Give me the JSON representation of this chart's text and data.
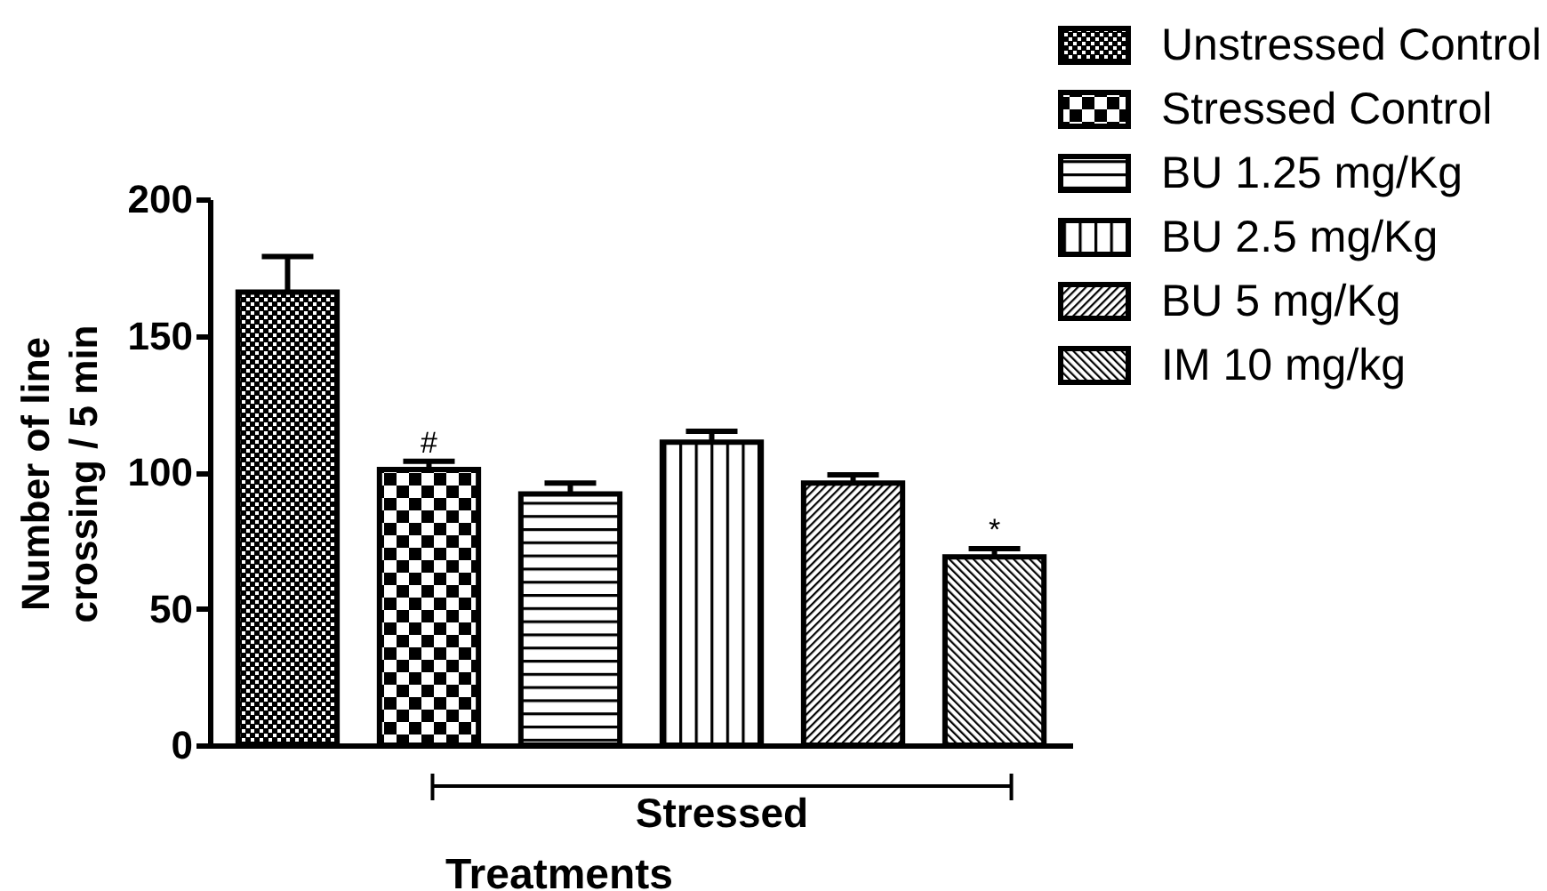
{
  "chart_data": {
    "type": "bar",
    "xlabel": "Treatments",
    "ylabel": "Number of line crossing / 5 min",
    "categories": [
      null
    ],
    "series": [
      {
        "name": "Unstressed Control",
        "color": "#000000",
        "values": [
          166
        ],
        "errors": [
          13
        ]
      },
      {
        "name": "Stressed Control",
        "color": "#000000",
        "values": [
          101
        ],
        "errors": [
          3
        ],
        "value_labels": [
          "#"
        ]
      },
      {
        "name": "BU 1.25 mg/Kg",
        "color": "#000000",
        "values": [
          92
        ],
        "errors": [
          4
        ]
      },
      {
        "name": "BU 2.5 mg/Kg",
        "color": "#000000",
        "values": [
          111
        ],
        "errors": [
          4
        ]
      },
      {
        "name": "BU 5 mg/Kg",
        "color": "#000000",
        "values": [
          96
        ],
        "errors": [
          3
        ]
      },
      {
        "name": "IM 10 mg/kg",
        "color": "#000000",
        "values": [
          69
        ],
        "errors": [
          3
        ],
        "value_labels": [
          "*"
        ]
      }
    ],
    "ylim": [
      0,
      200
    ],
    "yticks": [
      0,
      50,
      100,
      150,
      200
    ],
    "legend": "top right",
    "annotations": [
      "Stressed"
    ]
  }
}
